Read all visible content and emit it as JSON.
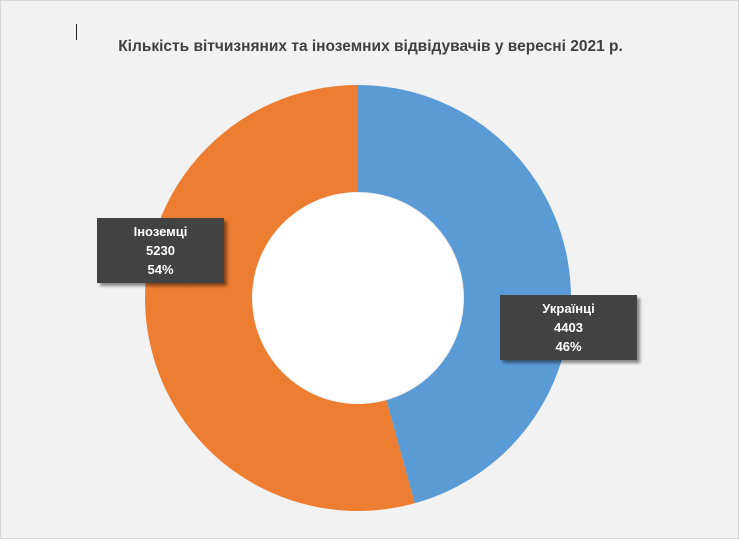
{
  "chart_data": {
    "type": "pie",
    "subtype": "doughnut",
    "title": "Кількість вітчизняних та іноземних відвідувачів у вересні 2021 р.",
    "categories": [
      "Українці",
      "Іноземці"
    ],
    "values": [
      4403,
      5230
    ],
    "percent_labels": [
      "46%",
      "54%"
    ],
    "value_labels": [
      "4403",
      "5230"
    ],
    "colors": [
      "#5b9bd5",
      "#ed7d31"
    ],
    "legend": "none"
  }
}
